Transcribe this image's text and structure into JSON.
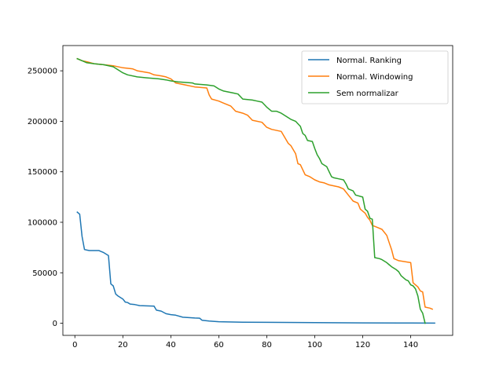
{
  "chart_data": {
    "type": "line",
    "xlim": [
      -5,
      157.5
    ],
    "ylim": [
      -12000,
      275000
    ],
    "xticks": [
      0,
      20,
      40,
      60,
      80,
      100,
      120,
      140
    ],
    "yticks": [
      0,
      50000,
      100000,
      150000,
      200000,
      250000
    ],
    "legend_position": "top-right",
    "series": [
      {
        "name": "Normal. Ranking",
        "color": "#1f77b4",
        "points": [
          [
            1,
            110000
          ],
          [
            2,
            108000
          ],
          [
            3,
            86000
          ],
          [
            4,
            73000
          ],
          [
            5,
            72500
          ],
          [
            6,
            72000
          ],
          [
            10,
            72000
          ],
          [
            12,
            70000
          ],
          [
            14,
            67000
          ],
          [
            15,
            39000
          ],
          [
            16,
            37000
          ],
          [
            17,
            29000
          ],
          [
            18,
            27000
          ],
          [
            20,
            24000
          ],
          [
            21,
            21000
          ],
          [
            22,
            20500
          ],
          [
            23,
            19000
          ],
          [
            25,
            18500
          ],
          [
            27,
            17500
          ],
          [
            33,
            17000
          ],
          [
            34,
            13000
          ],
          [
            36,
            12000
          ],
          [
            38,
            9500
          ],
          [
            40,
            8500
          ],
          [
            42,
            8000
          ],
          [
            45,
            6000
          ],
          [
            50,
            5200
          ],
          [
            52,
            5000
          ],
          [
            53,
            3000
          ],
          [
            56,
            2200
          ],
          [
            60,
            1500
          ],
          [
            70,
            1100
          ],
          [
            80,
            900
          ],
          [
            100,
            600
          ],
          [
            120,
            400
          ],
          [
            140,
            250
          ],
          [
            150,
            100
          ]
        ]
      },
      {
        "name": "Normal. Windowing",
        "color": "#ff7f0e",
        "points": [
          [
            1,
            262000
          ],
          [
            3,
            260000
          ],
          [
            5,
            259000
          ],
          [
            8,
            257000
          ],
          [
            12,
            256000
          ],
          [
            16,
            255000
          ],
          [
            20,
            253000
          ],
          [
            24,
            252000
          ],
          [
            26,
            250000
          ],
          [
            31,
            248000
          ],
          [
            33,
            246000
          ],
          [
            36,
            245000
          ],
          [
            38,
            244000
          ],
          [
            40,
            242000
          ],
          [
            42,
            238000
          ],
          [
            46,
            236000
          ],
          [
            50,
            234000
          ],
          [
            55,
            233000
          ],
          [
            56,
            226000
          ],
          [
            57,
            222000
          ],
          [
            60,
            220000
          ],
          [
            62,
            218000
          ],
          [
            65,
            215000
          ],
          [
            67,
            210000
          ],
          [
            70,
            208000
          ],
          [
            72,
            206000
          ],
          [
            74,
            201000
          ],
          [
            78,
            199000
          ],
          [
            80,
            194000
          ],
          [
            82,
            192000
          ],
          [
            86,
            190000
          ],
          [
            87,
            186000
          ],
          [
            89,
            178000
          ],
          [
            90,
            176000
          ],
          [
            92,
            168000
          ],
          [
            93,
            158000
          ],
          [
            94,
            157000
          ],
          [
            95,
            152000
          ],
          [
            96,
            147000
          ],
          [
            98,
            145000
          ],
          [
            100,
            142000
          ],
          [
            102,
            140000
          ],
          [
            104,
            139000
          ],
          [
            106,
            137000
          ],
          [
            110,
            135000
          ],
          [
            112,
            133000
          ],
          [
            114,
            127000
          ],
          [
            116,
            121000
          ],
          [
            118,
            119000
          ],
          [
            119,
            113000
          ],
          [
            121,
            109000
          ],
          [
            122,
            105000
          ],
          [
            123,
            102000
          ],
          [
            124,
            97000
          ],
          [
            126,
            95000
          ],
          [
            128,
            93000
          ],
          [
            130,
            87000
          ],
          [
            131,
            80000
          ],
          [
            132,
            73000
          ],
          [
            133,
            64000
          ],
          [
            135,
            62000
          ],
          [
            140,
            60000
          ],
          [
            141,
            40000
          ],
          [
            143,
            36000
          ],
          [
            144,
            32000
          ],
          [
            145,
            31000
          ],
          [
            146,
            16000
          ],
          [
            148,
            15000
          ],
          [
            149,
            14000
          ]
        ]
      },
      {
        "name": "Sem normalizar",
        "color": "#2ca02c",
        "points": [
          [
            1,
            262000
          ],
          [
            3,
            260000
          ],
          [
            5,
            258000
          ],
          [
            8,
            257000
          ],
          [
            12,
            256000
          ],
          [
            16,
            254000
          ],
          [
            18,
            251000
          ],
          [
            20,
            248000
          ],
          [
            22,
            246000
          ],
          [
            26,
            244000
          ],
          [
            30,
            243000
          ],
          [
            35,
            242000
          ],
          [
            38,
            241000
          ],
          [
            40,
            240000
          ],
          [
            43,
            239000
          ],
          [
            49,
            238000
          ],
          [
            50,
            237000
          ],
          [
            55,
            236000
          ],
          [
            58,
            235000
          ],
          [
            60,
            232000
          ],
          [
            62,
            230000
          ],
          [
            64,
            229000
          ],
          [
            66,
            228000
          ],
          [
            68,
            227000
          ],
          [
            70,
            222000
          ],
          [
            74,
            221000
          ],
          [
            76,
            220000
          ],
          [
            78,
            219000
          ],
          [
            80,
            214000
          ],
          [
            82,
            210000
          ],
          [
            84,
            210000
          ],
          [
            86,
            208000
          ],
          [
            88,
            205000
          ],
          [
            90,
            202000
          ],
          [
            92,
            200000
          ],
          [
            94,
            195000
          ],
          [
            95,
            188000
          ],
          [
            96,
            186000
          ],
          [
            97,
            181000
          ],
          [
            99,
            180000
          ],
          [
            100,
            173000
          ],
          [
            101,
            167000
          ],
          [
            102,
            163000
          ],
          [
            103,
            158000
          ],
          [
            105,
            155000
          ],
          [
            106,
            150000
          ],
          [
            107,
            145000
          ],
          [
            108,
            144000
          ],
          [
            110,
            143000
          ],
          [
            112,
            142000
          ],
          [
            113,
            138000
          ],
          [
            114,
            133000
          ],
          [
            116,
            131000
          ],
          [
            117,
            127000
          ],
          [
            120,
            125000
          ],
          [
            121,
            113000
          ],
          [
            122,
            111000
          ],
          [
            123,
            104000
          ],
          [
            124,
            103000
          ],
          [
            125,
            65000
          ],
          [
            127,
            64000
          ],
          [
            128,
            63000
          ],
          [
            130,
            60000
          ],
          [
            131,
            58000
          ],
          [
            132,
            56000
          ],
          [
            134,
            53000
          ],
          [
            135,
            51000
          ],
          [
            136,
            47000
          ],
          [
            137,
            45000
          ],
          [
            138,
            43000
          ],
          [
            139,
            42000
          ],
          [
            140,
            38000
          ],
          [
            141,
            37000
          ],
          [
            142,
            34000
          ],
          [
            143,
            27000
          ],
          [
            144,
            14000
          ],
          [
            145,
            10000
          ],
          [
            146,
            0
          ]
        ]
      }
    ]
  }
}
